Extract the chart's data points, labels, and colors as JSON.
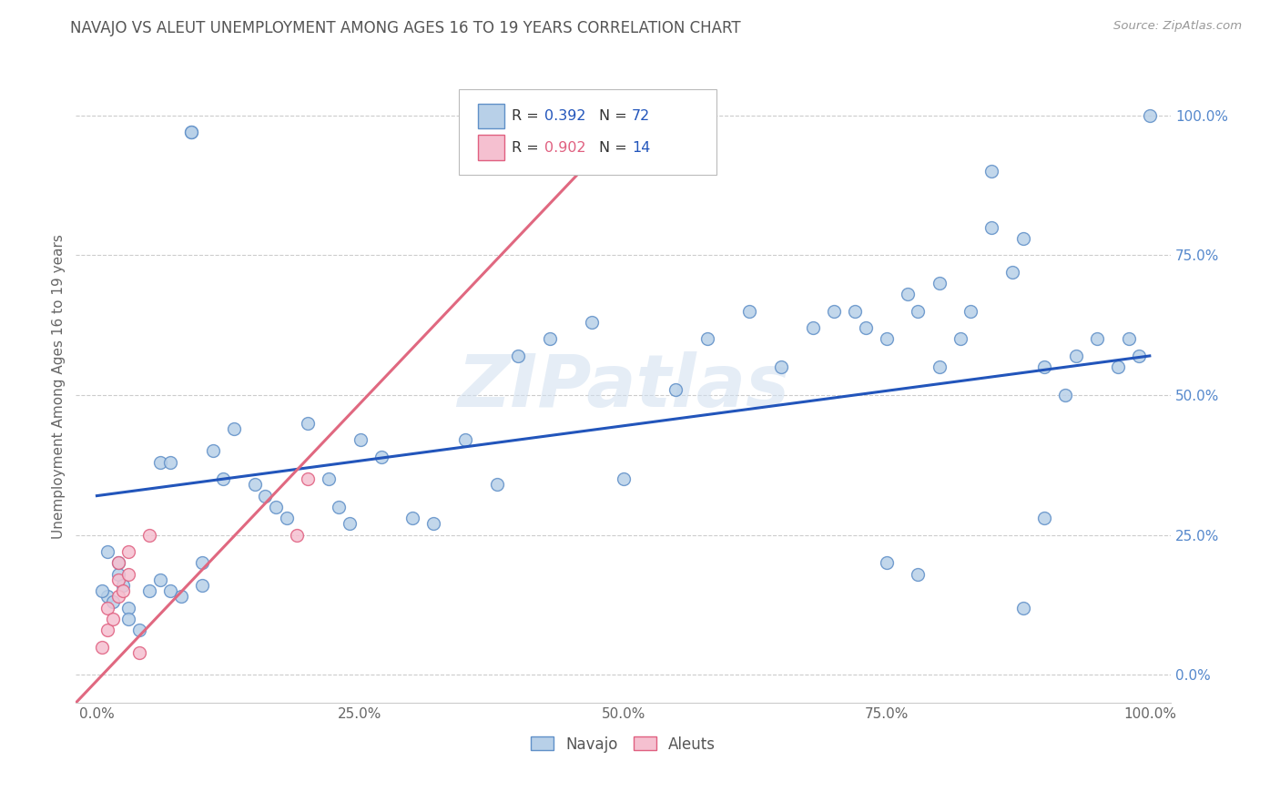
{
  "title": "NAVAJO VS ALEUT UNEMPLOYMENT AMONG AGES 16 TO 19 YEARS CORRELATION CHART",
  "source": "Source: ZipAtlas.com",
  "ylabel": "Unemployment Among Ages 16 to 19 years",
  "xlim": [
    -0.02,
    1.02
  ],
  "ylim": [
    -0.05,
    1.08
  ],
  "xticks": [
    0.0,
    0.25,
    0.5,
    0.75,
    1.0
  ],
  "yticks": [
    0.0,
    0.25,
    0.5,
    0.75,
    1.0
  ],
  "xticklabels": [
    "0.0%",
    "25.0%",
    "50.0%",
    "75.0%",
    "100.0%"
  ],
  "yticklabels": [
    "0.0%",
    "25.0%",
    "50.0%",
    "75.0%",
    "100.0%"
  ],
  "navajo_color": "#b8d0e8",
  "aleut_color": "#f5c0d0",
  "navajo_edge_color": "#6090c8",
  "aleut_edge_color": "#e06080",
  "navajo_line_color": "#2255bb",
  "aleut_line_color": "#e06880",
  "watermark": "ZIPatlas",
  "navajo_x": [
    0.02,
    0.025,
    0.03,
    0.01,
    0.005,
    0.015,
    0.02,
    0.01,
    0.03,
    0.04,
    0.05,
    0.06,
    0.06,
    0.07,
    0.07,
    0.08,
    0.09,
    0.09,
    0.1,
    0.1,
    0.11,
    0.12,
    0.13,
    0.15,
    0.16,
    0.17,
    0.18,
    0.2,
    0.22,
    0.23,
    0.24,
    0.25,
    0.27,
    0.3,
    0.32,
    0.35,
    0.38,
    0.4,
    0.43,
    0.47,
    0.5,
    0.55,
    0.58,
    0.62,
    0.65,
    0.68,
    0.7,
    0.72,
    0.73,
    0.75,
    0.77,
    0.78,
    0.8,
    0.82,
    0.83,
    0.85,
    0.87,
    0.88,
    0.9,
    0.92,
    0.93,
    0.95,
    0.97,
    0.98,
    0.99,
    1.0,
    0.75,
    0.78,
    0.8,
    0.85,
    0.88,
    0.9
  ],
  "navajo_y": [
    0.18,
    0.16,
    0.12,
    0.14,
    0.15,
    0.13,
    0.2,
    0.22,
    0.1,
    0.08,
    0.15,
    0.38,
    0.17,
    0.38,
    0.15,
    0.14,
    0.97,
    0.97,
    0.2,
    0.16,
    0.4,
    0.35,
    0.44,
    0.34,
    0.32,
    0.3,
    0.28,
    0.45,
    0.35,
    0.3,
    0.27,
    0.42,
    0.39,
    0.28,
    0.27,
    0.42,
    0.34,
    0.57,
    0.6,
    0.63,
    0.35,
    0.51,
    0.6,
    0.65,
    0.55,
    0.62,
    0.65,
    0.65,
    0.62,
    0.6,
    0.68,
    0.65,
    0.7,
    0.6,
    0.65,
    0.8,
    0.72,
    0.78,
    0.55,
    0.5,
    0.57,
    0.6,
    0.55,
    0.6,
    0.57,
    1.0,
    0.2,
    0.18,
    0.55,
    0.9,
    0.12,
    0.28
  ],
  "aleut_x": [
    0.005,
    0.01,
    0.01,
    0.015,
    0.02,
    0.02,
    0.02,
    0.025,
    0.03,
    0.03,
    0.04,
    0.05,
    0.19,
    0.2
  ],
  "aleut_y": [
    0.05,
    0.08,
    0.12,
    0.1,
    0.14,
    0.17,
    0.2,
    0.15,
    0.18,
    0.22,
    0.04,
    0.25,
    0.25,
    0.35
  ],
  "navajo_line_x": [
    0.0,
    1.0
  ],
  "navajo_line_y": [
    0.32,
    0.57
  ],
  "aleut_line_x": [
    -0.02,
    0.52
  ],
  "aleut_line_y": [
    -0.05,
    1.02
  ],
  "marker_size": 100,
  "marker_linewidth": 1.0,
  "background_color": "#ffffff",
  "grid_color": "#cccccc",
  "title_fontsize": 12,
  "axis_label_fontsize": 11,
  "tick_fontsize": 11
}
